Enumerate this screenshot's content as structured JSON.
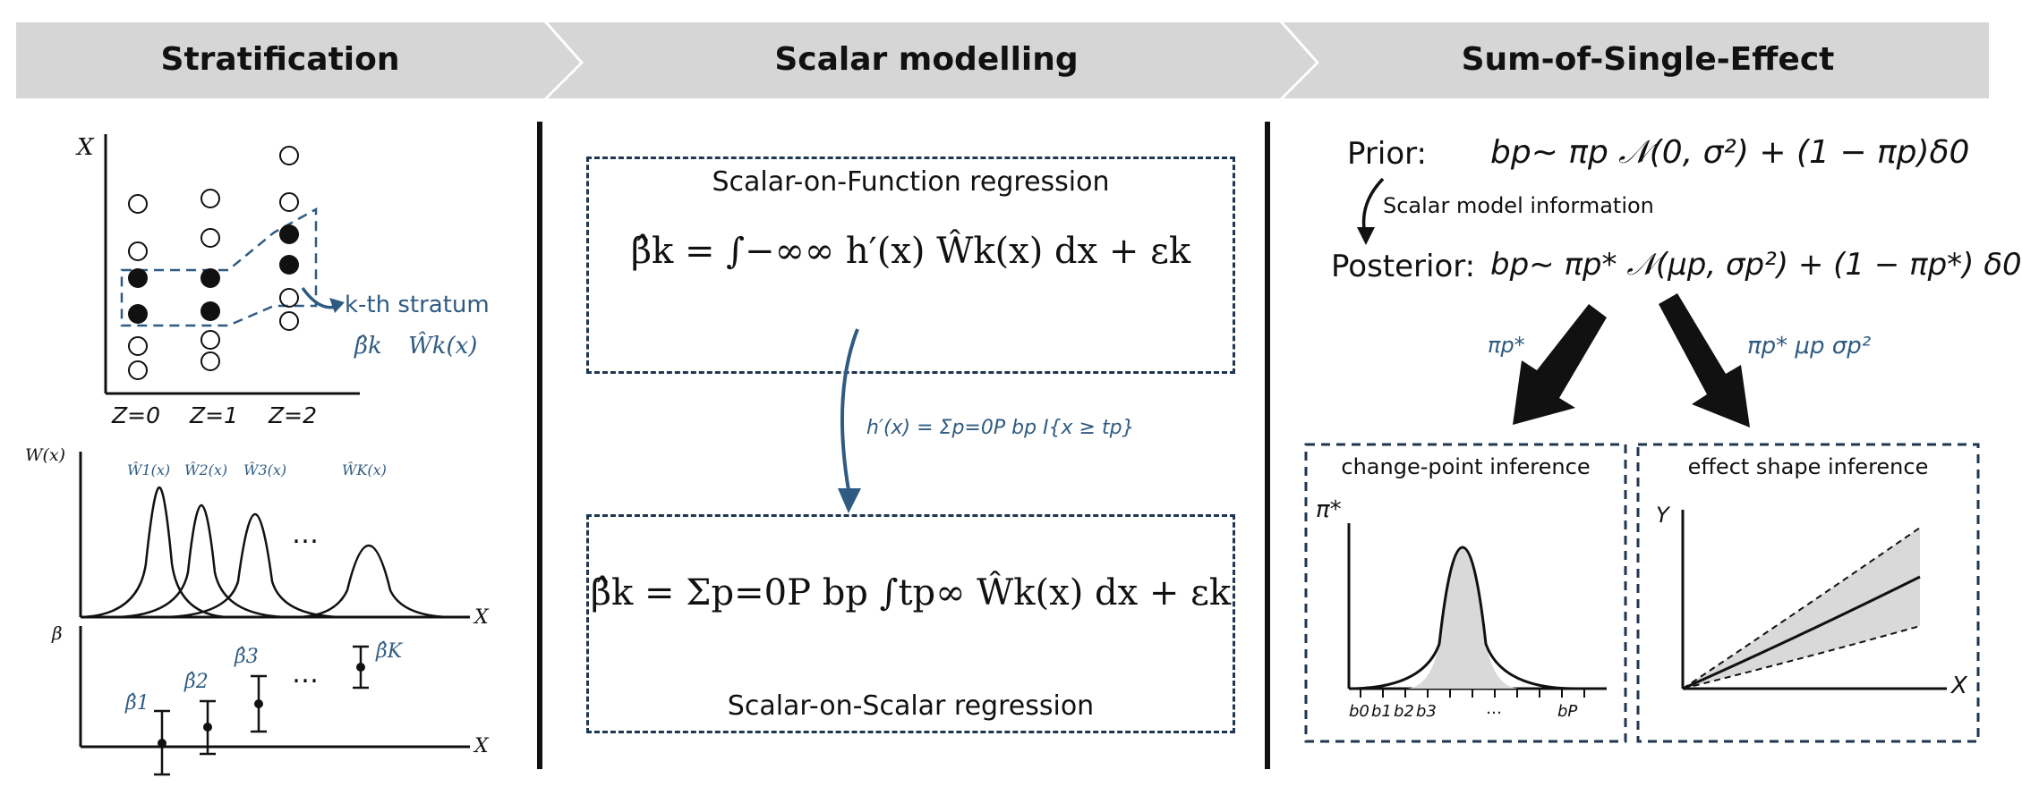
{
  "headers": {
    "stratification": "Stratification",
    "scalar_modelling": "Scalar modelling",
    "sum_of_single_effect": "Sum-of-Single-Effect"
  },
  "stratification": {
    "x_axis_label": "X",
    "z_labels": [
      "Z=0",
      "Z=1",
      "Z=2"
    ],
    "stratum_label": "k-th stratum",
    "stratum_beta": "β̂k",
    "stratum_w": "Ŵk(x)",
    "w_axis_label": "W(x)",
    "w_curve_labels": [
      "Ŵ1(x)",
      "Ŵ2(x)",
      "Ŵ3(x)",
      "ŴK(x)"
    ],
    "ellipsis": "…",
    "x_label_w_panel": "X",
    "beta_axis_label": "β",
    "beta_labels": [
      "β̂1",
      "β̂2",
      "β̂3",
      "β̂K"
    ],
    "x_label_beta_panel": "X"
  },
  "scalar_modelling": {
    "sof_title": "Scalar-on-Function regression",
    "sof_equation": "β̂k = ∫−∞∞ h′(x) Ŵk(x) dx + εk",
    "h_definition": "h′(x) = Σp=0P bp I{x ≥ tp}",
    "sos_equation": "β̂k = Σp=0P bp ∫tp∞ Ŵk(x) dx + εk",
    "sos_title": "Scalar-on-Scalar regression"
  },
  "sum_of_single_effect": {
    "prior_label": "Prior:",
    "prior_formula": "bp∼ πp 𝒩(0, σ²) + (1 − πp)δ0",
    "transition_label": "Scalar model information",
    "posterior_label": "Posterior:",
    "posterior_formula": "bp∼ πp* 𝒩(μp, σp²) + (1 − πp*) δ0",
    "left_arrow_label": "πp*",
    "right_arrow_label": "πp*  μp σp²",
    "changepoint_title": "change-point inference",
    "changepoint_y_label": "π*",
    "changepoint_ticks": [
      "b0",
      "b1",
      "b2",
      "b3",
      "…",
      "bP"
    ],
    "effect_title": "effect  shape inference",
    "effect_y_label": "Y",
    "effect_x_label": "X"
  },
  "colors": {
    "banner": "#d6d6d6",
    "accent_blue": "#2f5b82",
    "box_border": "#1f3650",
    "ink": "#111111",
    "shade": "#d9d9d9"
  }
}
